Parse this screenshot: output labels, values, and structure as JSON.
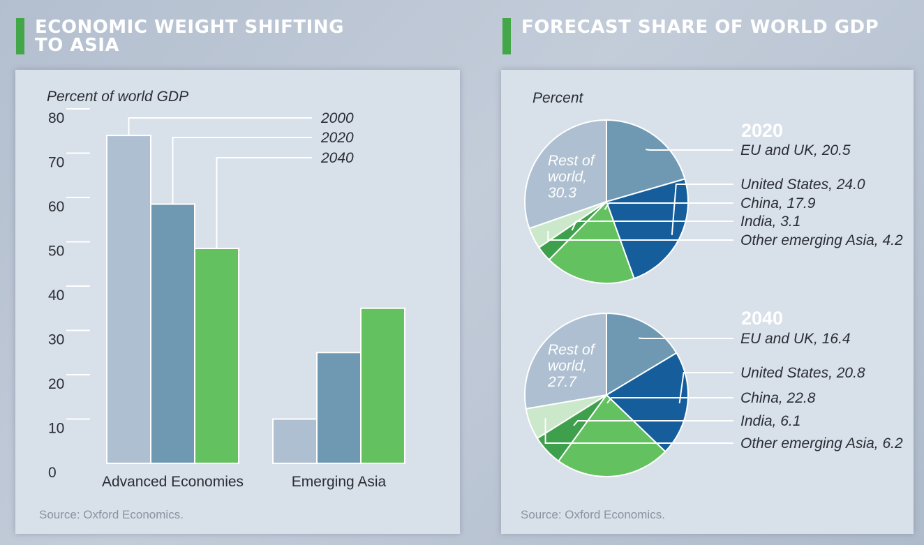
{
  "left": {
    "heading": "ECONOMIC WEIGHT SHIFTING TO ASIA",
    "heading_line1": "ECONOMIC WEIGHT SHIFTING",
    "heading_line2": "TO ASIA",
    "source": "Source: Oxford Economics."
  },
  "right": {
    "heading": "FORECAST SHARE OF WORLD GDP",
    "source": "Source: Oxford Economics."
  },
  "colors": {
    "accent_green": "#43a648",
    "s2000": "#adbfd0",
    "s2020": "#6f99b3",
    "s2040": "#63c15f",
    "eu_uk": "#6f99b3",
    "us": "#165e9b",
    "china": "#63c15f",
    "india": "#3e9f4c",
    "other_asia": "#cce8cb",
    "rest": "#adbfd0"
  },
  "chart_data": [
    {
      "type": "bar",
      "title": "",
      "ylabel": "Percent of world GDP",
      "ylim": [
        0,
        80
      ],
      "yticks": [
        "0",
        "10",
        "20",
        "30",
        "40",
        "50",
        "60",
        "70",
        "80"
      ],
      "categories": [
        "Advanced Economies",
        "Emerging Asia"
      ],
      "series": [
        {
          "name": "2000",
          "values": [
            74,
            10
          ]
        },
        {
          "name": "2020",
          "values": [
            58.5,
            25
          ]
        },
        {
          "name": "2040",
          "values": [
            48.5,
            35
          ]
        }
      ],
      "grid": false,
      "legend": "top-right, callout lines"
    },
    {
      "type": "pie",
      "ylabel": "Percent",
      "title": "2020",
      "slices": [
        {
          "label": "EU and UK",
          "value": 20.5,
          "text": "EU and UK, 20.5"
        },
        {
          "label": "United States",
          "value": 24.0,
          "text": "United States, 24.0"
        },
        {
          "label": "China",
          "value": 17.9,
          "text": "China, 17.9"
        },
        {
          "label": "India",
          "value": 3.1,
          "text": "India, 3.1"
        },
        {
          "label": "Other emerging Asia",
          "value": 4.2,
          "text": "Other emerging Asia, 4.2"
        },
        {
          "label": "Rest of world",
          "value": 30.3,
          "text_lines": [
            "Rest of",
            "world,",
            "30.3"
          ]
        }
      ]
    },
    {
      "type": "pie",
      "title": "2040",
      "slices": [
        {
          "label": "EU and UK",
          "value": 16.4,
          "text": "EU and UK, 16.4"
        },
        {
          "label": "United States",
          "value": 20.8,
          "text": "United States, 20.8"
        },
        {
          "label": "China",
          "value": 22.8,
          "text": "China, 22.8"
        },
        {
          "label": "India",
          "value": 6.1,
          "text": "India, 6.1"
        },
        {
          "label": "Other emerging Asia",
          "value": 6.2,
          "text": "Other emerging Asia, 6.2"
        },
        {
          "label": "Rest of world",
          "value": 27.7,
          "text_lines": [
            "Rest of",
            "world,",
            "27.7"
          ]
        }
      ]
    }
  ]
}
